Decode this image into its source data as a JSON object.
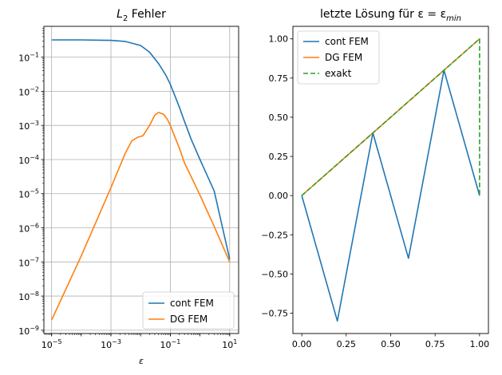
{
  "chart_data": [
    {
      "type": "line",
      "title": "L",
      "title_sub": "2",
      "title_rest": " Fehler",
      "xlabel": "ε",
      "ylabel": "",
      "xscale": "log",
      "yscale": "log",
      "grid": true,
      "legend_position": "lower-right",
      "xlim": [
        5.5e-06,
        20
      ],
      "ylim": [
        8e-10,
        0.8
      ],
      "xticks": [
        {
          "base": "10",
          "exp": "−5",
          "value": 1e-05
        },
        {
          "base": "10",
          "exp": "−3",
          "value": 0.001
        },
        {
          "base": "10",
          "exp": "−1",
          "value": 0.1
        },
        {
          "base": "10",
          "exp": "1",
          "value": 10
        }
      ],
      "yticks": [
        {
          "base": "10",
          "exp": "−9",
          "value": 1e-09
        },
        {
          "base": "10",
          "exp": "−8",
          "value": 1e-08
        },
        {
          "base": "10",
          "exp": "−7",
          "value": 1e-07
        },
        {
          "base": "10",
          "exp": "−6",
          "value": 1e-06
        },
        {
          "base": "10",
          "exp": "−5",
          "value": 1e-05
        },
        {
          "base": "10",
          "exp": "−4",
          "value": 0.0001
        },
        {
          "base": "10",
          "exp": "−3",
          "value": 0.001
        },
        {
          "base": "10",
          "exp": "−2",
          "value": 0.01
        },
        {
          "base": "10",
          "exp": "−1",
          "value": 0.1
        }
      ],
      "series": [
        {
          "name": "cont FEM",
          "color": "#1f77b4",
          "x": [
            1e-05,
            0.0001,
            0.001,
            0.003,
            0.01,
            0.02,
            0.04,
            0.07,
            0.1,
            0.2,
            0.3,
            0.5,
            1,
            3,
            10
          ],
          "y": [
            0.32,
            0.32,
            0.31,
            0.29,
            0.22,
            0.14,
            0.065,
            0.03,
            0.016,
            0.0035,
            0.0013,
            0.0004,
            0.0001,
            1.2e-05,
            1.2e-07
          ]
        },
        {
          "name": "DG FEM",
          "color": "#ff7f0e",
          "x": [
            1e-05,
            0.0001,
            0.001,
            0.003,
            0.005,
            0.008,
            0.012,
            0.02,
            0.03,
            0.04,
            0.06,
            0.08,
            0.1,
            0.2,
            0.3,
            1,
            3,
            10
          ],
          "y": [
            2e-09,
            1.5e-07,
            1.5e-05,
            0.00015,
            0.00035,
            0.00045,
            0.0005,
            0.001,
            0.002,
            0.0024,
            0.0021,
            0.0015,
            0.001,
            0.00022,
            8e-05,
            9e-06,
            1.1e-06,
            1e-07
          ]
        }
      ]
    },
    {
      "type": "line",
      "title": "letzte Lösung für ε = ε",
      "title_sub": "min",
      "xlabel": "",
      "ylabel": "",
      "grid": false,
      "legend_position": "upper-left",
      "xlim": [
        -0.05,
        1.05
      ],
      "ylim": [
        -0.88,
        1.08
      ],
      "xticks": [
        "0.00",
        "0.25",
        "0.50",
        "0.75",
        "1.00"
      ],
      "yticks": [
        "−0.75",
        "−0.50",
        "−0.25",
        "0.00",
        "0.25",
        "0.50",
        "0.75",
        "1.00"
      ],
      "series": [
        {
          "name": "cont FEM",
          "color": "#1f77b4",
          "dash": "solid",
          "x": [
            0,
            0.2,
            0.4,
            0.6,
            0.8,
            1.0
          ],
          "y": [
            0,
            -0.8,
            0.4,
            -0.4,
            0.8,
            0
          ]
        },
        {
          "name": "DG FEM",
          "color": "#ff7f0e",
          "dash": "solid",
          "x": [
            0,
            0.2,
            0.4,
            0.6,
            0.8,
            1.0
          ],
          "y": [
            0,
            0.2,
            0.4,
            0.6,
            0.8,
            1.0
          ]
        },
        {
          "name": "exakt",
          "color": "#2ca02c",
          "dash": "dashed",
          "x": [
            0,
            1.0,
            1.0
          ],
          "y": [
            0,
            1.0,
            0
          ]
        }
      ]
    }
  ]
}
